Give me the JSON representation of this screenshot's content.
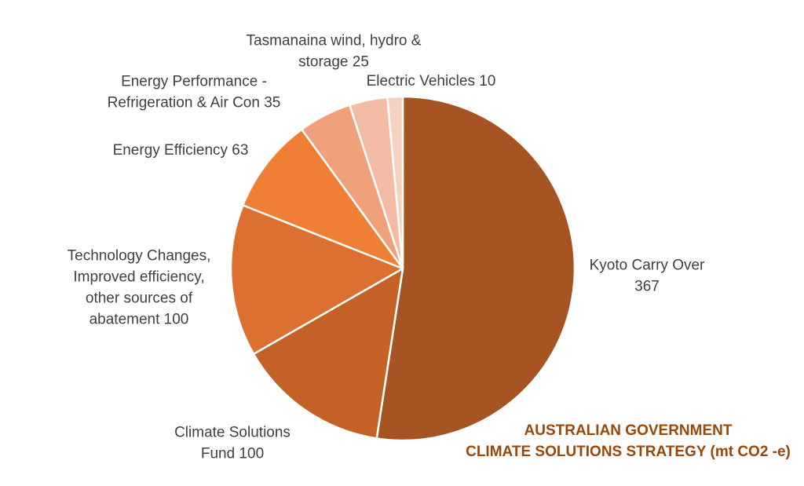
{
  "chart_data": {
    "type": "pie",
    "title": "AUSTRALIAN GOVERNMENT CLIMATE SOLUTIONS STRATEGY (mt CO2 -e)",
    "title_lines": [
      "AUSTRALIAN GOVERNMENT",
      "CLIMATE SOLUTIONS STRATEGY (mt CO2 -e)"
    ],
    "slices": [
      {
        "name": "Kyoto Carry Over",
        "value": 367,
        "label_lines": [
          "Kyoto Carry Over",
          "367"
        ],
        "color": "#a65522"
      },
      {
        "name": "Climate Solutions Fund",
        "value": 100,
        "label_lines": [
          "Climate Solutions",
          "Fund  100"
        ],
        "color": "#c46127"
      },
      {
        "name": "Technology Changes, Improved efficiency, other sources of abatement",
        "value": 100,
        "label_lines": [
          "Technology Changes,",
          "Improved efficiency,",
          "other sources of",
          "abatement 100"
        ],
        "color": "#db7030"
      },
      {
        "name": "Energy Efficiency",
        "value": 63,
        "label_lines": [
          "Energy Efficiency 63"
        ],
        "color": "#ee7f35"
      },
      {
        "name": "Energy Performance - Refrigeration & Air Con",
        "value": 35,
        "label_lines": [
          "Energy Performance -",
          "Refrigeration & Air Con 35"
        ],
        "color": "#f0a17c"
      },
      {
        "name": "Tasmanaina wind, hydro & storage",
        "value": 25,
        "label_lines": [
          "Tasmanaina wind, hydro &",
          "storage 25"
        ],
        "color": "#f3bba3"
      },
      {
        "name": "Electric Vehicles",
        "value": 10,
        "label_lines": [
          "Electric Vehicles 10"
        ],
        "color": "#f6d2c3"
      }
    ],
    "legend": "none",
    "start_angle": "12 o'clock",
    "direction": "clockwise"
  }
}
